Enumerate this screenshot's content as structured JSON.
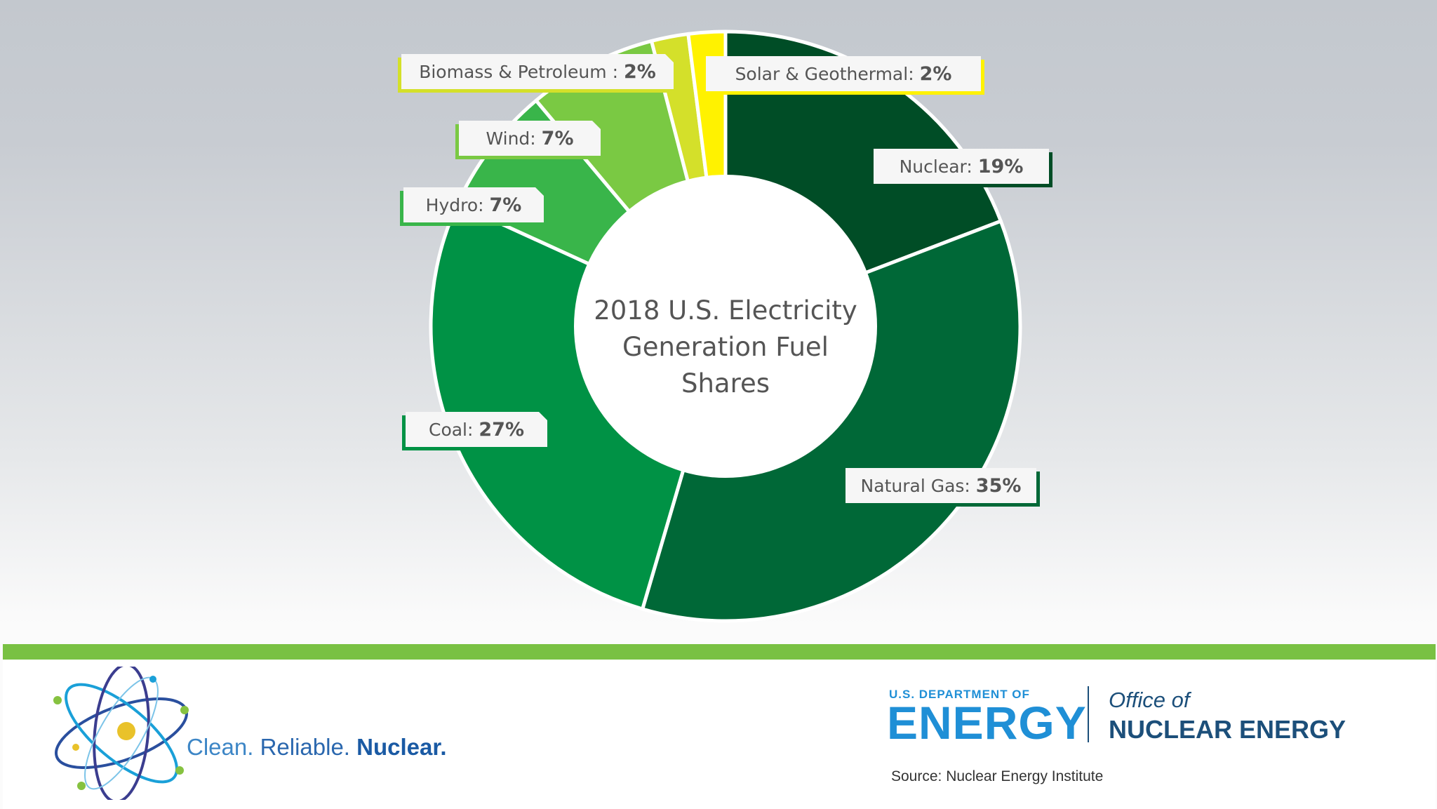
{
  "chart_data": {
    "type": "pie",
    "title": "2018 U.S. Electricity Generation Fuel Shares",
    "title_lines": [
      "2018 U.S. Electricity",
      "Generation Fuel",
      "Shares"
    ],
    "slices": [
      {
        "label": "Nuclear:",
        "value": 19,
        "display": "19%",
        "color": "#004d26"
      },
      {
        "label": "Natural Gas:",
        "value": 35,
        "display": "35%",
        "color": "#006837"
      },
      {
        "label": "Coal:",
        "value": 27,
        "display": "27%",
        "color": "#009245"
      },
      {
        "label": "Hydro:",
        "value": 7,
        "display": "7%",
        "color": "#39b54a"
      },
      {
        "label": "Wind:",
        "value": 7,
        "display": "7%",
        "color": "#7ac943"
      },
      {
        "label": "Biomass & Petroleum :",
        "value": 2,
        "display": "2%",
        "color": "#d4e02a"
      },
      {
        "label": "Solar & Geothermal:",
        "value": 2,
        "display": "2%",
        "color": "#fff200"
      }
    ]
  },
  "footer": {
    "tagline_part1": "Clean.",
    "tagline_part2": "Reliable.",
    "tagline_part3": "Nuclear.",
    "doe_dept": "U.S. DEPARTMENT OF",
    "doe_energy": "ENERGY",
    "office_of": "Office of",
    "office_name": "NUCLEAR ENERGY",
    "source": "Source: Nuclear Energy Institute"
  },
  "colors": {
    "accent_bar": "#79c143",
    "doe_blue": "#1f8fd6",
    "office_navy": "#1c4f7a"
  }
}
